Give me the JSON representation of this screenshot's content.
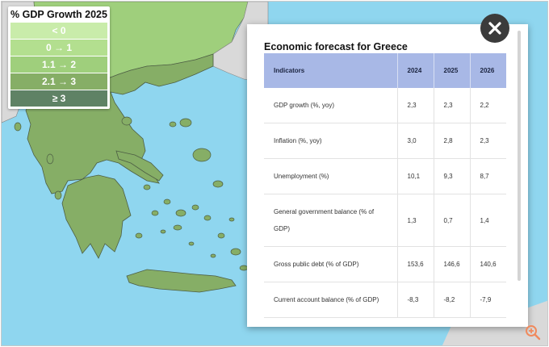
{
  "legend": {
    "title": "% GDP Growth 2025",
    "items": [
      {
        "label": "< 0",
        "color": "#c9ecaa"
      },
      {
        "label": "0 → 1",
        "color": "#b3df8f"
      },
      {
        "label": "1.1 → 2",
        "color": "#9fcf7c"
      },
      {
        "label": "2.1 → 3",
        "color": "#86ae66"
      },
      {
        "label": "≥ 3",
        "color": "#5f8265"
      }
    ]
  },
  "modal": {
    "title": "Economic forecast for Greece",
    "table": {
      "headers": [
        "Indicators",
        "2024",
        "2025",
        "2026"
      ],
      "rows": [
        [
          "GDP growth (%, yoy)",
          "2,3",
          "2,3",
          "2,2"
        ],
        [
          "Inflation (%, yoy)",
          "3,0",
          "2,8",
          "2,3"
        ],
        [
          "Unemployment (%)",
          "10,1",
          "9,3",
          "8,7"
        ],
        [
          "General government balance (% of GDP)",
          "1,3",
          "0,7",
          "1,4"
        ],
        [
          "Gross public debt (% of GDP)",
          "153,6",
          "146,6",
          "140,6"
        ],
        [
          "Current account balance (% of GDP)",
          "-8,3",
          "-8,2",
          "-7,9"
        ]
      ]
    }
  },
  "map_colors": {
    "sea": "#8fd6ef",
    "greece": "#86ae66",
    "neighbor_green": "#9fcf7c",
    "neighbor_grey": "#d9d9d9"
  },
  "icons": {
    "close": "close-icon",
    "zoom": "zoom-in-icon"
  }
}
